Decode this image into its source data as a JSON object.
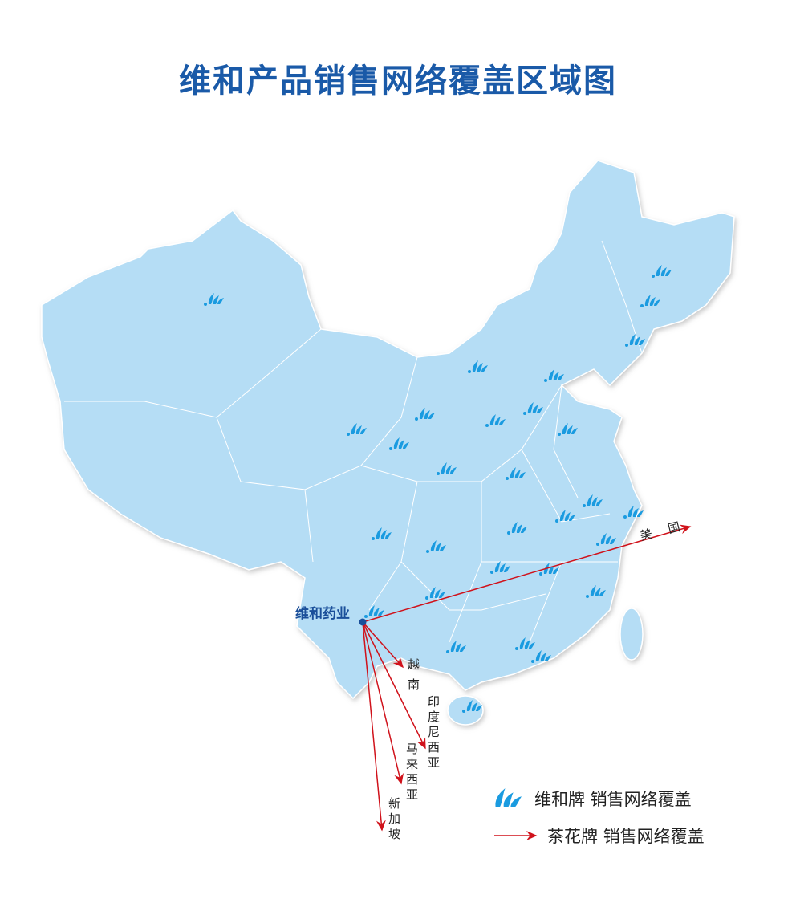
{
  "title": "维和产品销售网络覆盖区域图",
  "origin": {
    "label": "维和药业"
  },
  "destinations": [
    {
      "label": "美 国"
    },
    {
      "label": "越南"
    },
    {
      "label": "印度尼西亚"
    },
    {
      "label": "马来西亚"
    },
    {
      "label": "新加坡"
    }
  ],
  "legend": {
    "items": [
      {
        "icon": "leaf-flame-icon",
        "label": "维和牌 销售网络覆盖",
        "color": "#1a9be0"
      },
      {
        "icon": "red-arrow-icon",
        "label": "茶花牌 销售网络覆盖",
        "color": "#d0121b"
      }
    ]
  },
  "colors": {
    "land": "#b5ddf5",
    "border": "#ffffff",
    "marker": "#1a9be0",
    "arrow": "#d0121b",
    "title": "#1a5aa8"
  }
}
